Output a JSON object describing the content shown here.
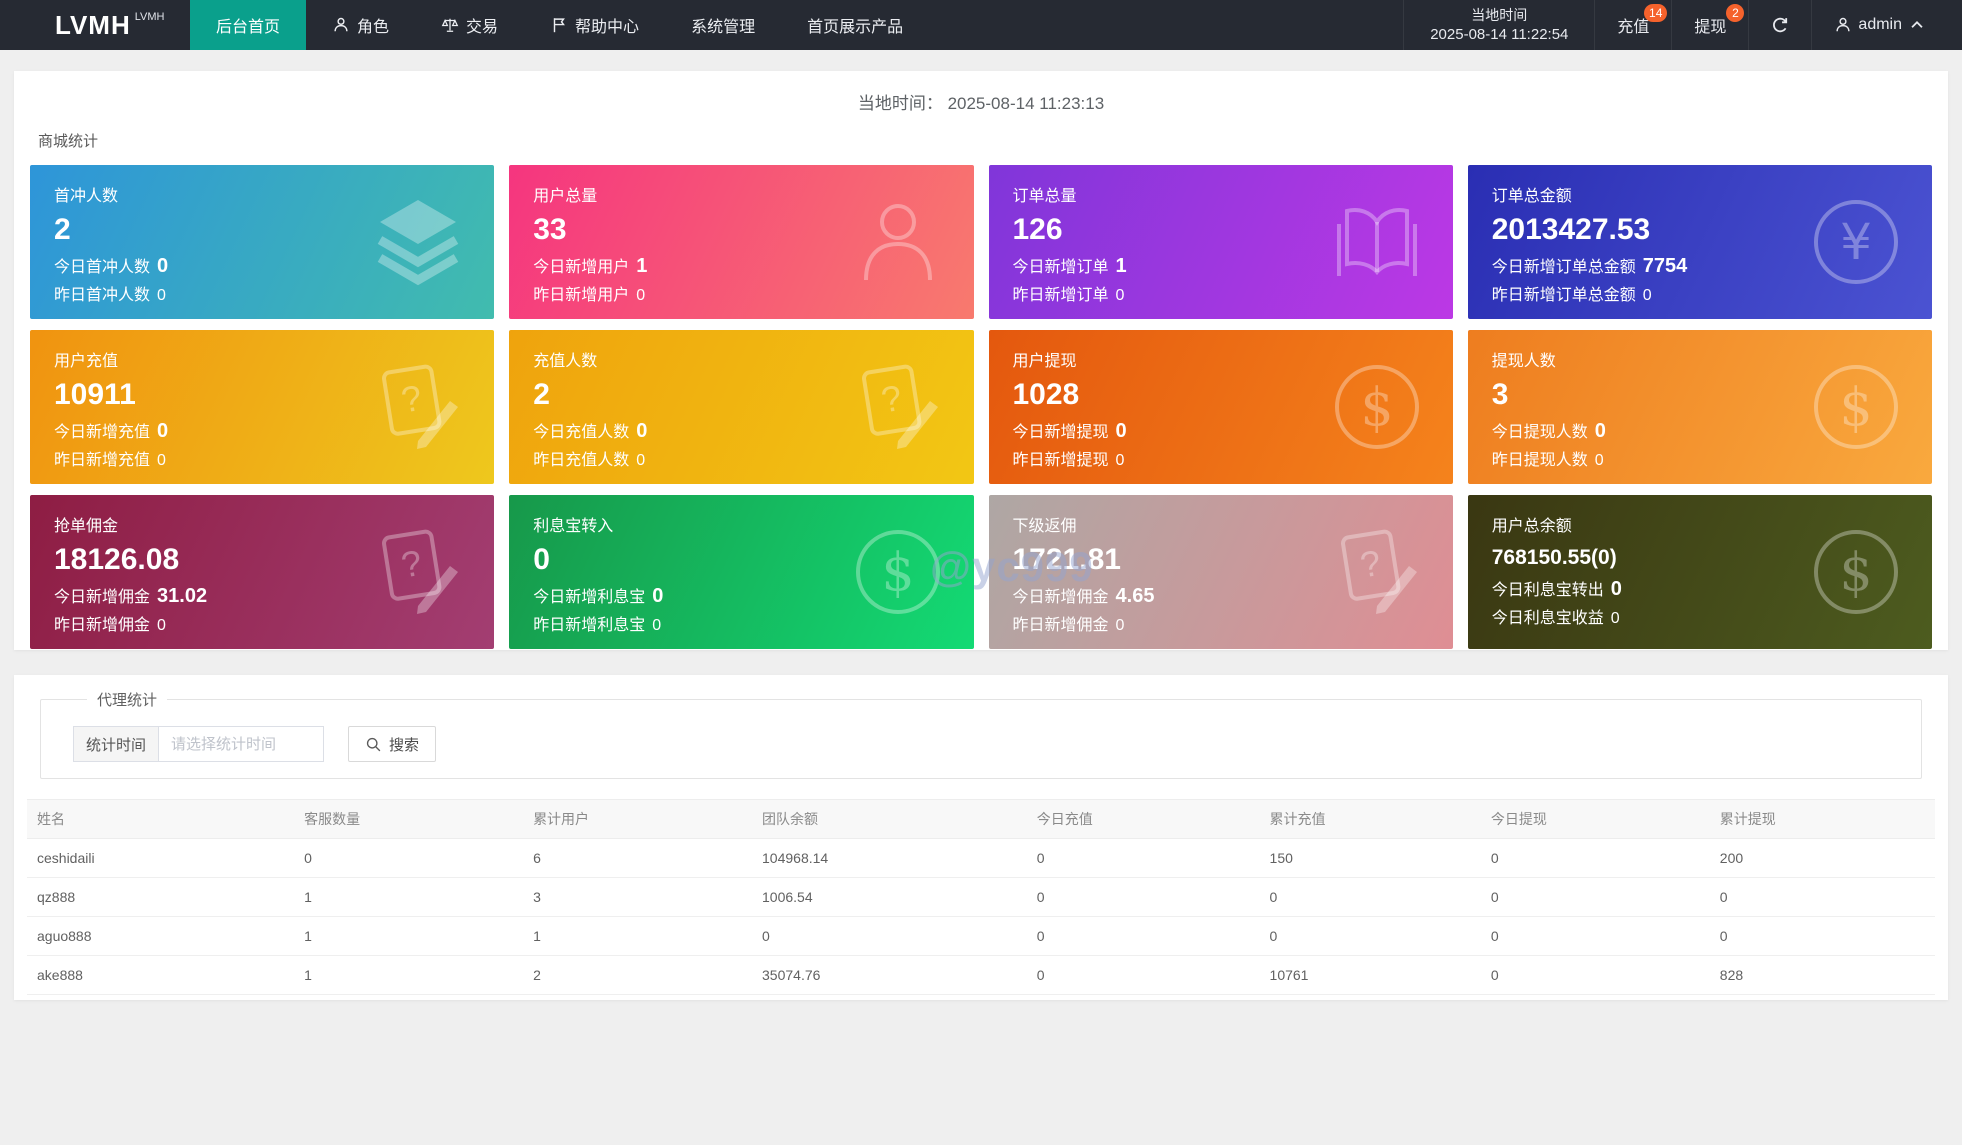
{
  "colors": {
    "navbar": "#262a33",
    "accent": "#0aa08c",
    "badge": "#f5622c",
    "watermark_color": "rgba(147,163,208,0.5)"
  },
  "nav": {
    "brand": "LVMH",
    "brand_sup": "LVMH",
    "items": [
      {
        "label": "后台首页",
        "active": true
      },
      {
        "label": "角色",
        "icon": "person-icon"
      },
      {
        "label": "交易",
        "icon": "scales-icon"
      },
      {
        "label": "帮助中心",
        "icon": "flag-icon"
      },
      {
        "label": "系统管理"
      },
      {
        "label": "首页展示产品"
      }
    ],
    "local_time_label": "当地时间",
    "local_time_value": "2025-08-14 11:22:54",
    "recharge_label": "充值",
    "recharge_badge": "14",
    "withdraw_label": "提现",
    "withdraw_badge": "2",
    "user": "admin"
  },
  "panel1": {
    "time_label": "当地时间：",
    "time_value": "2025-08-14 11:23:13",
    "section_title": "商城统计",
    "watermark": "@yc999",
    "cards": [
      {
        "label": "首冲人数",
        "value": "2",
        "line3_label": "今日首冲人数",
        "line3_value": "0",
        "line4_label": "昨日首冲人数",
        "line4_value": "0",
        "icon": "layers-icon",
        "from": "#2e95d9",
        "to": "#41bcae"
      },
      {
        "label": "用户总量",
        "value": "33",
        "line3_label": "今日新增用户",
        "line3_value": "1",
        "line4_label": "昨日新增用户",
        "line4_value": "0",
        "icon": "user-icon",
        "from": "#f5357f",
        "to": "#f87a6e"
      },
      {
        "label": "订单总量",
        "value": "126",
        "line3_label": "今日新增订单",
        "line3_value": "1",
        "line4_label": "昨日新增订单",
        "line4_value": "0",
        "icon": "book-icon",
        "from": "#8036d9",
        "to": "#bc38e5"
      },
      {
        "label": "订单总金额",
        "value": "2013427.53",
        "line3_label": "今日新增订单总金额",
        "line3_value": "7754",
        "line4_label": "昨日新增订单总金额",
        "line4_value": "0",
        "icon": "yen-icon",
        "from": "#2a2eb3",
        "to": "#4b53d2"
      },
      {
        "label": "用户充值",
        "value": "10911",
        "line3_label": "今日新增充值",
        "line3_value": "0",
        "line4_label": "昨日新增充值",
        "line4_value": "0",
        "icon": "edit-note-icon",
        "from": "#f09310",
        "to": "#eec81d"
      },
      {
        "label": "充值人数",
        "value": "2",
        "line3_label": "今日充值人数",
        "line3_value": "0",
        "line4_label": "昨日充值人数",
        "line4_value": "0",
        "icon": "edit-note-icon",
        "from": "#efa30d",
        "to": "#f2c714"
      },
      {
        "label": "用户提现",
        "value": "1028",
        "line3_label": "今日新增提现",
        "line3_value": "0",
        "line4_label": "昨日新增提现",
        "line4_value": "0",
        "icon": "dollar-icon",
        "from": "#e4580e",
        "to": "#f5831c"
      },
      {
        "label": "提现人数",
        "value": "3",
        "line3_label": "今日提现人数",
        "line3_value": "0",
        "line4_label": "昨日提现人数",
        "line4_value": "0",
        "icon": "dollar-icon",
        "from": "#ee7d1f",
        "to": "#f9a93e"
      },
      {
        "label": "抢单佣金",
        "value": "18126.08",
        "line3_label": "今日新增佣金",
        "line3_value": "31.02",
        "line4_label": "昨日新增佣金",
        "line4_value": "0",
        "icon": "edit-note-icon",
        "from": "#8e1d43",
        "to": "#a33e72"
      },
      {
        "label": "利息宝转入",
        "value": "0",
        "line3_label": "今日新增利息宝",
        "line3_value": "0",
        "line4_label": "昨日新增利息宝",
        "line4_value": "0",
        "icon": "dollar-icon",
        "from": "#17984a",
        "to": "#13da74"
      },
      {
        "label": "下级返佣",
        "value": "1721.81",
        "line3_label": "今日新增佣金",
        "line3_value": "4.65",
        "line4_label": "昨日新增佣金",
        "line4_value": "0",
        "icon": "edit-note-icon",
        "from": "#aea7a4",
        "to": "#df8e94"
      },
      {
        "label": "用户总余额",
        "value": "768150.55(0)",
        "small_value": true,
        "line3_label": "今日利息宝转出",
        "line3_value": "0",
        "line4_label": "今日利息宝收益",
        "line4_value": "0",
        "icon": "dollar-icon",
        "from": "#3a3712",
        "to": "#4d5c1f"
      }
    ]
  },
  "panel2": {
    "legend": "代理统计",
    "form": {
      "label": "统计时间",
      "placeholder": "请选择统计时间",
      "search_label": "搜索"
    },
    "table": {
      "headers": [
        "姓名",
        "客服数量",
        "累计用户",
        "团队余额",
        "今日充值",
        "累计充值",
        "今日提现",
        "累计提现"
      ],
      "rows": [
        [
          "ceshidaili",
          "0",
          "6",
          "104968.14",
          "0",
          "150",
          "0",
          "200"
        ],
        [
          "qz888",
          "1",
          "3",
          "1006.54",
          "0",
          "0",
          "0",
          "0"
        ],
        [
          "aguo888",
          "1",
          "1",
          "0",
          "0",
          "0",
          "0",
          "0"
        ],
        [
          "ake888",
          "1",
          "2",
          "35074.76",
          "0",
          "10761",
          "0",
          "828"
        ]
      ]
    }
  }
}
